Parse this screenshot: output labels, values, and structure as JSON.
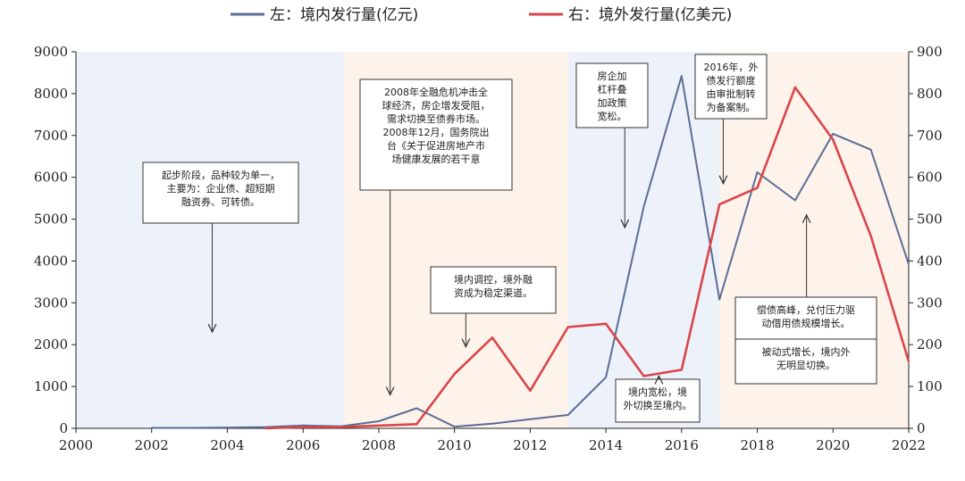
{
  "chart_data": {
    "type": "line",
    "x_ticks": [
      2000,
      2002,
      2004,
      2006,
      2008,
      2010,
      2012,
      2014,
      2016,
      2018,
      2020,
      2022
    ],
    "xlim": [
      2000,
      2022
    ],
    "ylim_left": [
      0,
      9000
    ],
    "ylim_right": [
      0,
      900
    ],
    "y_ticks_left": [
      0,
      1000,
      2000,
      3000,
      4000,
      5000,
      6000,
      7000,
      8000,
      9000
    ],
    "y_ticks_right": [
      0,
      100,
      200,
      300,
      400,
      500,
      600,
      700,
      800,
      900
    ],
    "series": [
      {
        "name": "左：境内发行量(亿元)",
        "axis": "left",
        "color": "#5b6d97",
        "x": [
          2002,
          2003,
          2004,
          2005,
          2006,
          2007,
          2008,
          2009,
          2010,
          2011,
          2012,
          2013,
          2014,
          2015,
          2016,
          2017,
          2018,
          2019,
          2020,
          2021,
          2022
        ],
        "values": [
          10,
          10,
          20,
          30,
          70,
          50,
          170,
          480,
          40,
          110,
          220,
          320,
          1220,
          5300,
          8420,
          3080,
          6120,
          5450,
          7040,
          6660,
          3920
        ]
      },
      {
        "name": "右：境外发行量(亿美元)",
        "axis": "right",
        "color": "#d9464a",
        "x": [
          2005,
          2006,
          2007,
          2009,
          2010,
          2011,
          2012,
          2013,
          2014,
          2015,
          2016,
          2017,
          2018,
          2019,
          2020,
          2021,
          2022
        ],
        "values": [
          0,
          3,
          3,
          10,
          130,
          217,
          90,
          242,
          250,
          125,
          140,
          535,
          575,
          815,
          690,
          460,
          160
        ]
      }
    ],
    "phases": [
      {
        "from": 2000,
        "to": 2007.1,
        "color": "#edf1f9"
      },
      {
        "from": 2007.1,
        "to": 2013,
        "color": "#fdf3ea"
      },
      {
        "from": 2013,
        "to": 2017,
        "color": "#edf1f9"
      },
      {
        "from": 2017,
        "to": 2022,
        "color": "#fdf3ea"
      }
    ],
    "annotations": [
      {
        "lines": [
          "起步阶段，品种较为单一，",
          "主要为：企业债、超短期",
          "融资券、可转债。"
        ],
        "pointer_x": 2003.6,
        "pointer_y_left": 2300
      },
      {
        "lines": [
          "2008年全融危机冲击全",
          "球经济，房企增发受阻，",
          "需求切换至债券市场。",
          "2008年12月，国务院出",
          "台《关于促进房地产市",
          "场健康发展的若干意"
        ],
        "pointer_x": 2008.3,
        "pointer_y_left": 800
      },
      {
        "lines": [
          "境内调控，境外融",
          "资成为稳定渠道。"
        ],
        "pointer_x": 2010.3,
        "pointer_y_left": 1950
      },
      {
        "lines": [
          "房企加",
          "杠杆叠",
          "加政策",
          "宽松。"
        ],
        "pointer_x": 2014.5,
        "pointer_y_left": 4800
      },
      {
        "lines": [
          "境内宽松，境",
          "外切换至境内。"
        ],
        "pointer_x": 2015.4,
        "pointer_y_left": 1250
      },
      {
        "lines": [
          "2016年，外",
          "债发行额度",
          "由审批制转",
          "为备案制。"
        ],
        "pointer_x": 2017.1,
        "pointer_y_left": 5850
      },
      {
        "lines": [
          "偿债高峰，兑付压力驱",
          "动借用债规模增长。"
        ],
        "pointer_x": 2019.3,
        "pointer_y_left": 5100
      },
      {
        "lines": [
          "被动式增长，境内外",
          "无明显切换。"
        ],
        "pointer_x": null,
        "pointer_y_left": null
      }
    ]
  }
}
